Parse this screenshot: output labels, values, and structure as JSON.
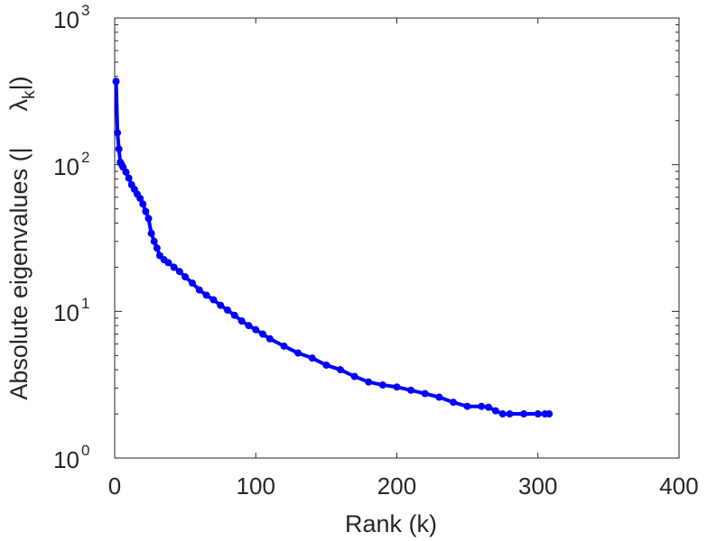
{
  "chart_data": {
    "type": "line",
    "title": "",
    "xlabel": "Rank (k)",
    "ylabel": "Absolute eigenvalues (|λ_k|)",
    "ylabel_parts": {
      "prefix": "Absolute eigenvalues (|",
      "lambda": "λ",
      "sub": "k",
      "suffix": "|)"
    },
    "y_scale": "log",
    "xlim": [
      0,
      400
    ],
    "ylim": [
      1,
      1000
    ],
    "x_ticks": [
      "0",
      "100",
      "200",
      "300",
      "400"
    ],
    "y_ticks": [
      {
        "base": "10",
        "exp": "0"
      },
      {
        "base": "10",
        "exp": "1"
      },
      {
        "base": "10",
        "exp": "2"
      },
      {
        "base": "10",
        "exp": "3"
      }
    ],
    "grid": false,
    "series_color": "#0000ff",
    "marker": "circle",
    "series": [
      {
        "x": [
          1,
          2,
          3,
          4,
          5,
          6,
          8,
          10,
          12,
          14,
          16,
          18,
          20,
          22,
          24,
          26,
          28,
          30,
          32,
          35,
          38,
          42,
          46,
          50,
          55,
          60,
          65,
          70,
          75,
          80,
          85,
          90,
          95,
          100,
          105,
          110,
          120,
          130,
          140,
          150,
          160,
          170,
          180,
          190,
          200,
          210,
          220,
          230,
          240,
          250,
          260,
          265,
          270,
          275,
          280,
          290,
          300,
          305,
          308
        ],
        "y": [
          370,
          165,
          128,
          104,
          100,
          96,
          89,
          81,
          73,
          68,
          63,
          59,
          54,
          48,
          43,
          34,
          30,
          27,
          24,
          22.5,
          21.5,
          20,
          18.7,
          17.2,
          15.6,
          14,
          12.9,
          12,
          11,
          10.2,
          9.4,
          8.6,
          8.0,
          7.5,
          7.0,
          6.5,
          5.8,
          5.2,
          4.8,
          4.3,
          4.0,
          3.6,
          3.3,
          3.15,
          3.05,
          2.9,
          2.75,
          2.6,
          2.4,
          2.25,
          2.25,
          2.22,
          2.1,
          2.0,
          2.0,
          2.0,
          2.0,
          2.0,
          2.0
        ]
      }
    ]
  }
}
